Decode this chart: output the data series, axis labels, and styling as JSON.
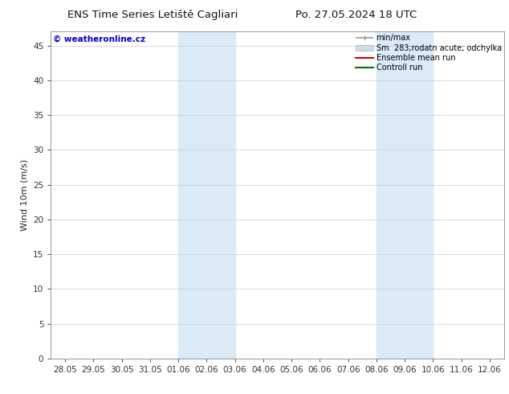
{
  "title_left": "ENS Time Series Letiště Cagliari",
  "title_right": "Po. 27.05.2024 18 UTC",
  "ylabel": "Wind 10m (m/s)",
  "bg_color": "#ffffff",
  "plot_bg_color": "#ffffff",
  "x_tick_labels": [
    "28.05",
    "29.05",
    "30.05",
    "31.05",
    "01.06",
    "02.06",
    "03.06",
    "04.06",
    "05.06",
    "06.06",
    "07.06",
    "08.06",
    "09.06",
    "10.06",
    "11.06",
    "12.06"
  ],
  "x_tick_positions": [
    0,
    1,
    2,
    3,
    4,
    5,
    6,
    7,
    8,
    9,
    10,
    11,
    12,
    13,
    14,
    15
  ],
  "ylim": [
    0,
    47
  ],
  "yticks": [
    0,
    5,
    10,
    15,
    20,
    25,
    30,
    35,
    40,
    45
  ],
  "shaded_regions": [
    {
      "xmin": 4,
      "xmax": 6,
      "color": "#daeaf7"
    },
    {
      "xmin": 11,
      "xmax": 13,
      "color": "#daeaf7"
    }
  ],
  "legend_labels": [
    "min/max",
    "Sm  283;rodatn acute; odchylka",
    "Ensemble mean run",
    "Controll run"
  ],
  "legend_colors_line": [
    "#999999",
    "#bbccdd",
    "#ff0000",
    "#00aa00"
  ],
  "watermark_text": "© weatheronline.cz",
  "watermark_color": "#0000cc",
  "title_fontsize": 9.5,
  "tick_fontsize": 7.5,
  "ylabel_fontsize": 8,
  "legend_fontsize": 7
}
